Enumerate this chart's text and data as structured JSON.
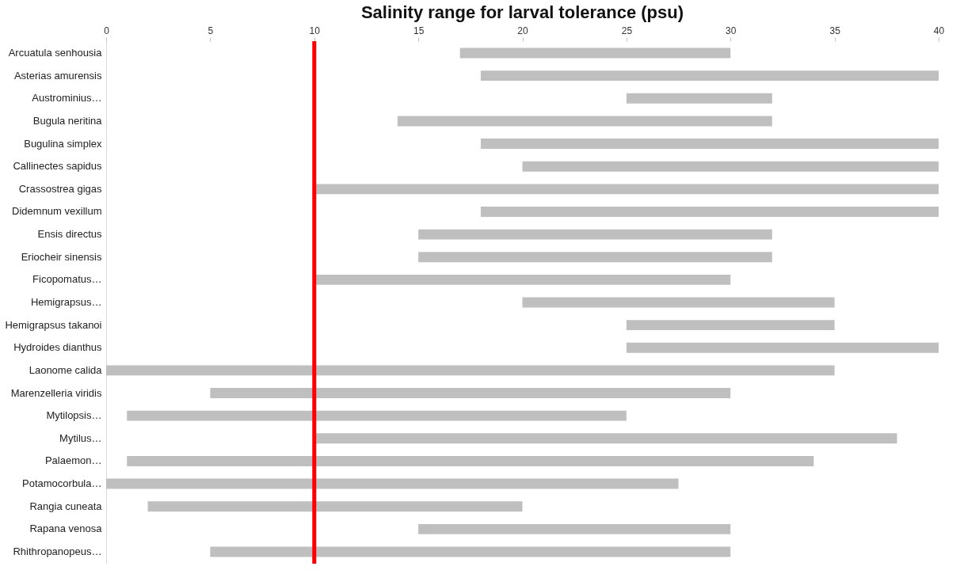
{
  "chart_data": {
    "type": "bar",
    "orientation": "horizontal",
    "title": "Salinity range for larval tolerance (psu)",
    "categories": [
      "Arcuatula senhousia",
      "Asterias amurensis",
      "Austrominius…",
      "Bugula neritina",
      "Bugulina simplex",
      "Callinectes sapidus",
      "Crassostrea gigas",
      "Didemnum vexillum",
      "Ensis directus",
      "Eriocheir sinensis",
      "Ficopomatus…",
      "Hemigrapsus…",
      "Hemigrapsus takanoi",
      "Hydroides dianthus",
      "Laonome calida",
      "Marenzelleria viridis",
      "Mytilopsis…",
      "Mytilus…",
      "Palaemon…",
      "Potamocorbula…",
      "Rangia cuneata",
      "Rapana venosa",
      "Rhithropanopeus…"
    ],
    "base": [
      17,
      18,
      25,
      14,
      18,
      20,
      10,
      18,
      15,
      15,
      10,
      20,
      25,
      25,
      0,
      5,
      1,
      10,
      1,
      0,
      2,
      15,
      5
    ],
    "values": [
      13,
      22,
      7,
      18,
      22,
      20,
      30,
      22,
      17,
      17,
      20,
      15,
      10,
      15,
      35,
      25,
      24,
      28,
      33,
      27.5,
      18,
      15,
      25
    ],
    "color": "#bfbfbf",
    "xlim": [
      0,
      40
    ],
    "xticks": [
      0,
      5,
      10,
      15,
      20,
      25,
      30,
      35,
      40
    ],
    "ref_lines": [
      {
        "axis": "x",
        "value": 10,
        "color": "#ff0000"
      }
    ],
    "grid": false
  }
}
